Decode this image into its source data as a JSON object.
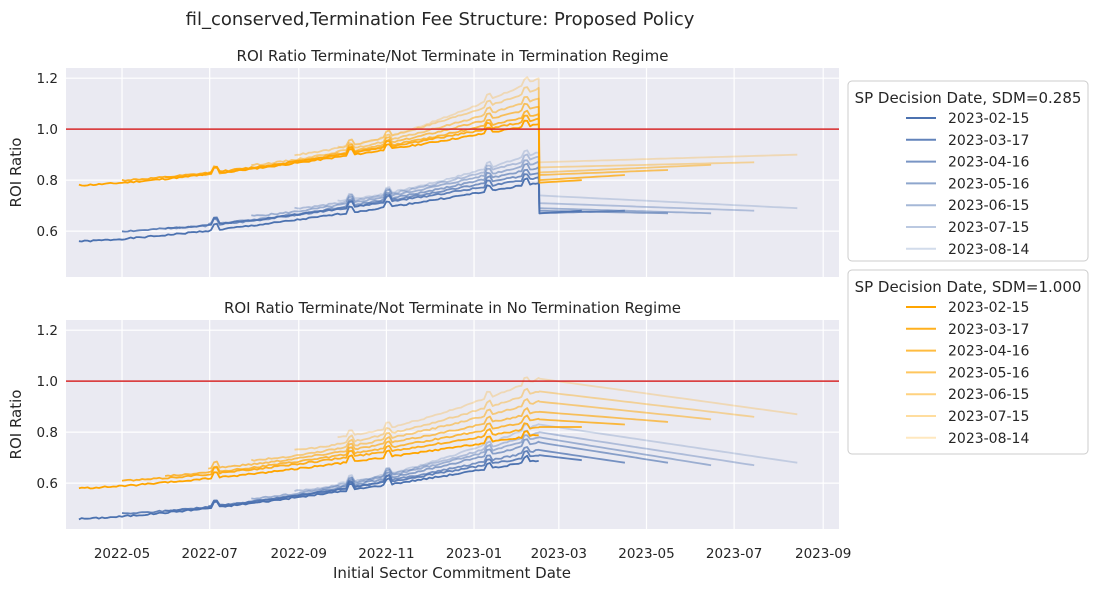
{
  "title": "fil_conserved,Termination Fee Structure: Proposed Policy",
  "xlabel": "Initial Sector Commitment Date",
  "colors": {
    "blue": "#4c72b0",
    "orange": "#ffa500",
    "refline": "#d62728",
    "panel_bg": "#eaeaf2",
    "grid": "#ffffff"
  },
  "chart_data": [
    {
      "type": "line",
      "title": "ROI Ratio Terminate/Not Terminate in Termination Regime",
      "ylabel": "ROI Ratio",
      "xlim": [
        "2022-03-23",
        "2023-09-12"
      ],
      "ylim": [
        0.42,
        1.24
      ],
      "yticks": [
        0.6,
        0.8,
        1.0,
        1.2
      ],
      "xticks": [
        "2022-05",
        "2022-07",
        "2022-09",
        "2022-11",
        "2023-01",
        "2023-03",
        "2023-05",
        "2023-07",
        "2023-09"
      ],
      "reference_line": 1.0,
      "grid": true,
      "legend": {
        "placement": "outside-right"
      },
      "series_groups": [
        {
          "legend_title": "SP Decision Date, SDM=0.285",
          "color": "#4c72b0",
          "series": [
            {
              "name": "2023-02-15",
              "start_value": 0.56,
              "peak_value": 0.79,
              "after_drop_value": 0.67,
              "end_date": "2023-02-15",
              "end_value": 0.67
            },
            {
              "name": "2023-03-17",
              "start_value": 0.6,
              "peak_value": 0.81,
              "after_drop_value": 0.67,
              "end_date": "2023-03-17",
              "end_value": 0.68
            },
            {
              "name": "2023-04-16",
              "start_value": 0.61,
              "peak_value": 0.83,
              "after_drop_value": 0.67,
              "end_date": "2023-04-16",
              "end_value": 0.68
            },
            {
              "name": "2023-05-16",
              "start_value": 0.63,
              "peak_value": 0.85,
              "after_drop_value": 0.68,
              "end_date": "2023-05-16",
              "end_value": 0.67
            },
            {
              "name": "2023-06-15",
              "start_value": 0.66,
              "peak_value": 0.87,
              "after_drop_value": 0.69,
              "end_date": "2023-06-15",
              "end_value": 0.67
            },
            {
              "name": "2023-07-15",
              "start_value": 0.69,
              "peak_value": 0.89,
              "after_drop_value": 0.71,
              "end_date": "2023-07-15",
              "end_value": 0.68
            },
            {
              "name": "2023-08-14",
              "start_value": 0.72,
              "peak_value": 0.91,
              "after_drop_value": 0.74,
              "end_date": "2023-08-14",
              "end_value": 0.69
            }
          ]
        },
        {
          "legend_title": "SP Decision Date, SDM=1.000",
          "color": "#ffa500",
          "series": [
            {
              "name": "2023-02-15",
              "start_value": 0.78,
              "peak_value": 1.02,
              "after_drop_value": 0.78,
              "end_date": "2023-02-15",
              "end_value": 0.78
            },
            {
              "name": "2023-03-17",
              "start_value": 0.8,
              "peak_value": 1.04,
              "after_drop_value": 0.79,
              "end_date": "2023-03-17",
              "end_value": 0.8
            },
            {
              "name": "2023-04-16",
              "start_value": 0.81,
              "peak_value": 1.06,
              "after_drop_value": 0.8,
              "end_date": "2023-04-16",
              "end_value": 0.82
            },
            {
              "name": "2023-05-16",
              "start_value": 0.83,
              "peak_value": 1.09,
              "after_drop_value": 0.82,
              "end_date": "2023-05-16",
              "end_value": 0.84
            },
            {
              "name": "2023-06-15",
              "start_value": 0.86,
              "peak_value": 1.12,
              "after_drop_value": 0.83,
              "end_date": "2023-06-15",
              "end_value": 0.86
            },
            {
              "name": "2023-07-15",
              "start_value": 0.9,
              "peak_value": 1.16,
              "after_drop_value": 0.85,
              "end_date": "2023-07-15",
              "end_value": 0.87
            },
            {
              "name": "2023-08-14",
              "start_value": 0.93,
              "peak_value": 1.2,
              "after_drop_value": 0.87,
              "end_date": "2023-08-14",
              "end_value": 0.9
            }
          ]
        }
      ]
    },
    {
      "type": "line",
      "title": "ROI Ratio Terminate/Not Terminate in No Termination Regime",
      "ylabel": "ROI Ratio",
      "xlim": [
        "2022-03-23",
        "2023-09-12"
      ],
      "ylim": [
        0.42,
        1.24
      ],
      "yticks": [
        0.6,
        0.8,
        1.0,
        1.2
      ],
      "xticks": [
        "2022-05",
        "2022-07",
        "2022-09",
        "2022-11",
        "2023-01",
        "2023-03",
        "2023-05",
        "2023-07",
        "2023-09"
      ],
      "reference_line": 1.0,
      "grid": true,
      "series_groups": [
        {
          "legend_title": "SP Decision Date, SDM=0.285",
          "color": "#4c72b0",
          "series": [
            {
              "name": "2023-02-15",
              "start_value": 0.46,
              "peak_value": 0.69,
              "end_date": "2023-02-15",
              "end_value": 0.69
            },
            {
              "name": "2023-03-17",
              "start_value": 0.48,
              "peak_value": 0.71,
              "end_date": "2023-03-17",
              "end_value": 0.69
            },
            {
              "name": "2023-04-16",
              "start_value": 0.49,
              "peak_value": 0.73,
              "end_date": "2023-04-16",
              "end_value": 0.68
            },
            {
              "name": "2023-05-16",
              "start_value": 0.51,
              "peak_value": 0.76,
              "end_date": "2023-05-16",
              "end_value": 0.68
            },
            {
              "name": "2023-06-15",
              "start_value": 0.54,
              "peak_value": 0.78,
              "end_date": "2023-06-15",
              "end_value": 0.67
            },
            {
              "name": "2023-07-15",
              "start_value": 0.57,
              "peak_value": 0.8,
              "end_date": "2023-07-15",
              "end_value": 0.67
            },
            {
              "name": "2023-08-14",
              "start_value": 0.6,
              "peak_value": 0.83,
              "end_date": "2023-08-14",
              "end_value": 0.68
            }
          ]
        },
        {
          "legend_title": "SP Decision Date, SDM=1.000",
          "color": "#ffa500",
          "series": [
            {
              "name": "2023-02-15",
              "start_value": 0.58,
              "peak_value": 0.79,
              "end_date": "2023-02-15",
              "end_value": 0.79
            },
            {
              "name": "2023-03-17",
              "start_value": 0.61,
              "peak_value": 0.82,
              "end_date": "2023-03-17",
              "end_value": 0.82
            },
            {
              "name": "2023-04-16",
              "start_value": 0.63,
              "peak_value": 0.85,
              "end_date": "2023-04-16",
              "end_value": 0.83
            },
            {
              "name": "2023-05-16",
              "start_value": 0.66,
              "peak_value": 0.88,
              "end_date": "2023-05-16",
              "end_value": 0.84
            },
            {
              "name": "2023-06-15",
              "start_value": 0.69,
              "peak_value": 0.92,
              "end_date": "2023-06-15",
              "end_value": 0.85
            },
            {
              "name": "2023-07-15",
              "start_value": 0.73,
              "peak_value": 0.96,
              "end_date": "2023-07-15",
              "end_value": 0.86
            },
            {
              "name": "2023-08-14",
              "start_value": 0.78,
              "peak_value": 1.01,
              "end_date": "2023-08-14",
              "end_value": 0.87
            }
          ]
        }
      ]
    }
  ]
}
